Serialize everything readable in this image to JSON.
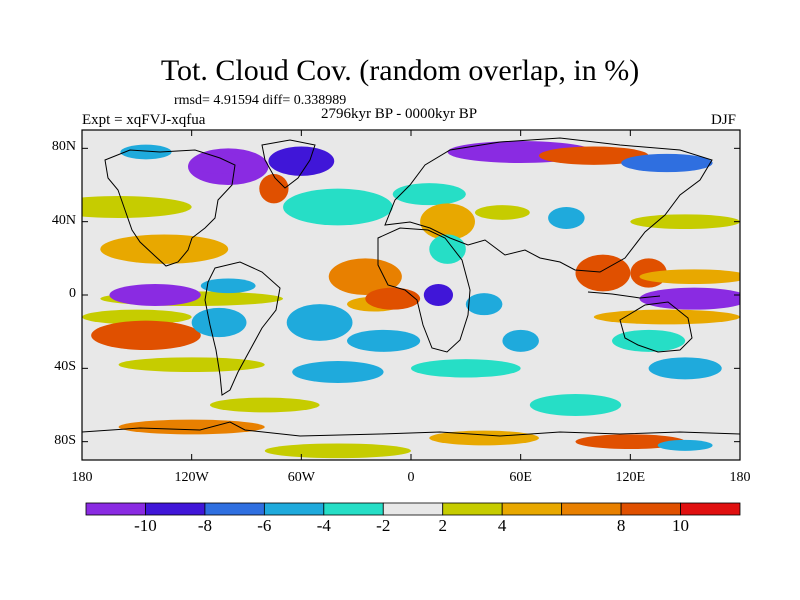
{
  "title": "Tot. Cloud Cov. (random overlap, in %)",
  "stats_text": "rmsd= 4.91594 diff= 0.338989",
  "experiment_label": "Expt = xqFVJ-xqfua",
  "period_label": "2796kyr BP - 0000kyr BP",
  "season_label": "DJF",
  "map": {
    "projection": "cylindrical equidistant",
    "lon_range": [
      -180,
      180
    ],
    "lat_range": [
      -90,
      90
    ],
    "x_ticks": [
      {
        "lon": -180,
        "label": "180"
      },
      {
        "lon": -120,
        "label": "120W"
      },
      {
        "lon": -60,
        "label": "60W"
      },
      {
        "lon": 0,
        "label": "0"
      },
      {
        "lon": 60,
        "label": "60E"
      },
      {
        "lon": 120,
        "label": "120E"
      },
      {
        "lon": 180,
        "label": "180"
      }
    ],
    "y_ticks": [
      {
        "lat": 80,
        "label": "80N"
      },
      {
        "lat": 40,
        "label": "40N"
      },
      {
        "lat": 0,
        "label": "0"
      },
      {
        "lat": -40,
        "label": "40S"
      },
      {
        "lat": -80,
        "label": "80S"
      }
    ],
    "background_color": "#e8e8e8",
    "anomaly_regions": [
      {
        "lon": -100,
        "lat": 70,
        "rx": 22,
        "ry": 10,
        "level": -10
      },
      {
        "lon": -105,
        "lat": 72,
        "rx": 14,
        "ry": 6,
        "level": -11
      },
      {
        "lon": -60,
        "lat": 73,
        "rx": 18,
        "ry": 8,
        "level": -8
      },
      {
        "lon": -145,
        "lat": 78,
        "rx": 14,
        "ry": 4,
        "level": -4
      },
      {
        "lon": 60,
        "lat": 78,
        "rx": 40,
        "ry": 6,
        "level": -10
      },
      {
        "lon": 100,
        "lat": 76,
        "rx": 30,
        "ry": 5,
        "level": 10
      },
      {
        "lon": 140,
        "lat": 72,
        "rx": 25,
        "ry": 5,
        "level": -6
      },
      {
        "lon": -75,
        "lat": 58,
        "rx": 8,
        "ry": 8,
        "level": 10
      },
      {
        "lon": -160,
        "lat": 48,
        "rx": 40,
        "ry": 6,
        "level": 3
      },
      {
        "lon": -40,
        "lat": 48,
        "rx": 30,
        "ry": 10,
        "level": -3
      },
      {
        "lon": 10,
        "lat": 55,
        "rx": 20,
        "ry": 6,
        "level": -3
      },
      {
        "lon": 150,
        "lat": 40,
        "rx": 30,
        "ry": 4,
        "level": 3
      },
      {
        "lon": -135,
        "lat": 25,
        "rx": 35,
        "ry": 8,
        "level": 6
      },
      {
        "lon": 20,
        "lat": 40,
        "rx": 15,
        "ry": 10,
        "level": 5
      },
      {
        "lon": 20,
        "lat": 25,
        "rx": 10,
        "ry": 8,
        "level": -3
      },
      {
        "lon": 50,
        "lat": 45,
        "rx": 15,
        "ry": 4,
        "level": 3
      },
      {
        "lon": 85,
        "lat": 42,
        "rx": 10,
        "ry": 6,
        "level": -5
      },
      {
        "lon": -25,
        "lat": 10,
        "rx": 20,
        "ry": 10,
        "level": 7
      },
      {
        "lon": 105,
        "lat": 12,
        "rx": 15,
        "ry": 10,
        "level": 10
      },
      {
        "lon": 130,
        "lat": 12,
        "rx": 10,
        "ry": 8,
        "level": 10
      },
      {
        "lon": 155,
        "lat": 10,
        "rx": 30,
        "ry": 4,
        "level": 5
      },
      {
        "lon": -120,
        "lat": -2,
        "rx": 50,
        "ry": 4,
        "level": 3
      },
      {
        "lon": -140,
        "lat": 0,
        "rx": 25,
        "ry": 6,
        "level": -11
      },
      {
        "lon": 155,
        "lat": -2,
        "rx": 30,
        "ry": 6,
        "level": -11
      },
      {
        "lon": -100,
        "lat": 5,
        "rx": 15,
        "ry": 4,
        "level": -5
      },
      {
        "lon": -150,
        "lat": -12,
        "rx": 30,
        "ry": 4,
        "level": 3
      },
      {
        "lon": -20,
        "lat": -5,
        "rx": 15,
        "ry": 4,
        "level": 6
      },
      {
        "lon": -10,
        "lat": -2,
        "rx": 15,
        "ry": 6,
        "level": 10
      },
      {
        "lon": 15,
        "lat": 0,
        "rx": 8,
        "ry": 6,
        "level": -9
      },
      {
        "lon": 40,
        "lat": -5,
        "rx": 10,
        "ry": 6,
        "level": -4
      },
      {
        "lon": 140,
        "lat": -12,
        "rx": 40,
        "ry": 4,
        "level": 5
      },
      {
        "lon": -145,
        "lat": -22,
        "rx": 30,
        "ry": 8,
        "level": 10
      },
      {
        "lon": -105,
        "lat": -15,
        "rx": 15,
        "ry": 8,
        "level": -4
      },
      {
        "lon": -50,
        "lat": -15,
        "rx": 18,
        "ry": 10,
        "level": -5
      },
      {
        "lon": -15,
        "lat": -25,
        "rx": 20,
        "ry": 6,
        "level": -4
      },
      {
        "lon": 60,
        "lat": -25,
        "rx": 10,
        "ry": 6,
        "level": -4
      },
      {
        "lon": 130,
        "lat": -25,
        "rx": 20,
        "ry": 6,
        "level": -3
      },
      {
        "lon": -120,
        "lat": -38,
        "rx": 40,
        "ry": 4,
        "level": 3
      },
      {
        "lon": -40,
        "lat": -42,
        "rx": 25,
        "ry": 6,
        "level": -4
      },
      {
        "lon": 30,
        "lat": -40,
        "rx": 30,
        "ry": 5,
        "level": -3
      },
      {
        "lon": 150,
        "lat": -40,
        "rx": 20,
        "ry": 6,
        "level": -4
      },
      {
        "lon": -80,
        "lat": -60,
        "rx": 30,
        "ry": 4,
        "level": 3
      },
      {
        "lon": 90,
        "lat": -60,
        "rx": 25,
        "ry": 6,
        "level": -3
      },
      {
        "lon": -120,
        "lat": -72,
        "rx": 40,
        "ry": 4,
        "level": 7
      },
      {
        "lon": 40,
        "lat": -78,
        "rx": 30,
        "ry": 4,
        "level": 5
      },
      {
        "lon": 120,
        "lat": -80,
        "rx": 30,
        "ry": 4,
        "level": 10
      },
      {
        "lon": -40,
        "lat": -85,
        "rx": 40,
        "ry": 4,
        "level": 3
      },
      {
        "lon": 150,
        "lat": -82,
        "rx": 15,
        "ry": 3,
        "level": -4
      }
    ]
  },
  "colorbar": {
    "bins": [
      {
        "color": "#8a2be2",
        "level": -11
      },
      {
        "color": "#4016d8",
        "level": -9
      },
      {
        "color": "#2f6fe0",
        "level": -7
      },
      {
        "color": "#1faadc",
        "level": -5
      },
      {
        "color": "#26dec6",
        "level": -3
      },
      {
        "color": "#e8e8e8",
        "level": 0
      },
      {
        "color": "#c6cc00",
        "level": 3
      },
      {
        "color": "#e8a800",
        "level": 5
      },
      {
        "color": "#e88000",
        "level": 7
      },
      {
        "color": "#e05000",
        "level": 9
      },
      {
        "color": "#e01010",
        "level": 11
      }
    ],
    "labels": [
      "-10",
      "-8",
      "-6",
      "-4",
      "-2",
      "2",
      "4",
      "8",
      "10"
    ]
  }
}
